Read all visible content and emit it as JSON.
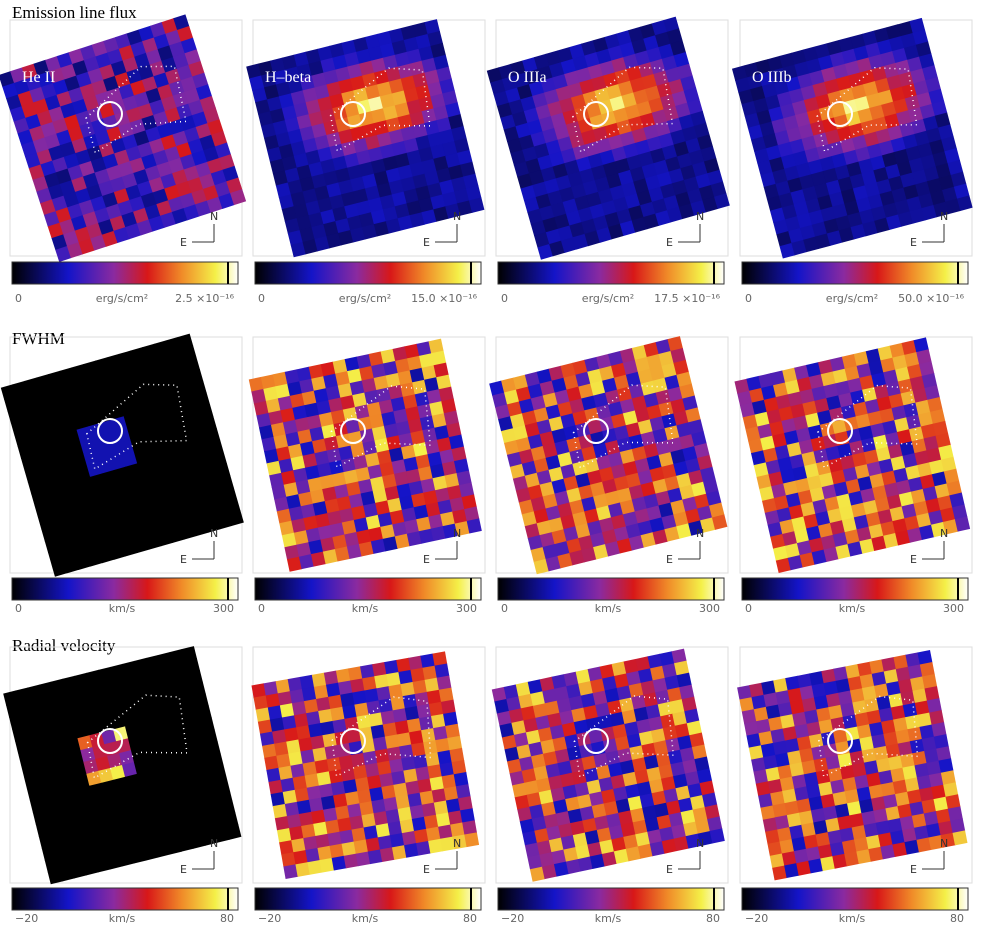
{
  "rows": [
    {
      "title": "Emission line flux",
      "colorbar": {
        "min": "0",
        "unit": "erg/s/cm²",
        "max": [
          "2.5 ×10⁻¹⁶",
          "15.0 ×10⁻¹⁶",
          "17.5 ×10⁻¹⁶",
          "50.0 ×10⁻¹⁶"
        ]
      }
    },
    {
      "title": "FWHM",
      "colorbar": {
        "min": "0",
        "unit": "km/s",
        "max": [
          "300",
          "300",
          "300",
          "300"
        ]
      }
    },
    {
      "title": "Radial velocity",
      "colorbar": {
        "min": "−20",
        "unit": "km/s",
        "max": [
          "80",
          "80",
          "80",
          "80"
        ]
      }
    }
  ],
  "panels": [
    "He II",
    "H–beta",
    "O IIIa",
    "O IIIb"
  ],
  "compass": {
    "north": "N",
    "east": "E"
  }
}
